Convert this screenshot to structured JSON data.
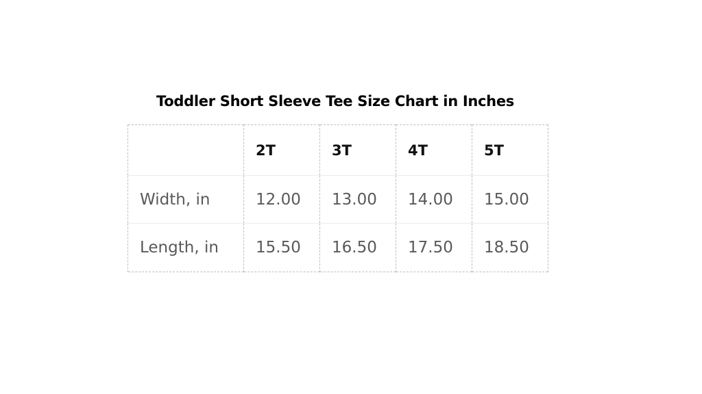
{
  "title": "Toddler Short Sleeve Tee Size Chart in Inches",
  "table": {
    "headers": [
      "",
      "2T",
      "3T",
      "4T",
      "5T"
    ],
    "rows": [
      {
        "label": "Width, in",
        "values": [
          "12.00",
          "13.00",
          "14.00",
          "15.00"
        ]
      },
      {
        "label": "Length, in",
        "values": [
          "15.50",
          "16.50",
          "17.50",
          "18.50"
        ]
      }
    ]
  }
}
